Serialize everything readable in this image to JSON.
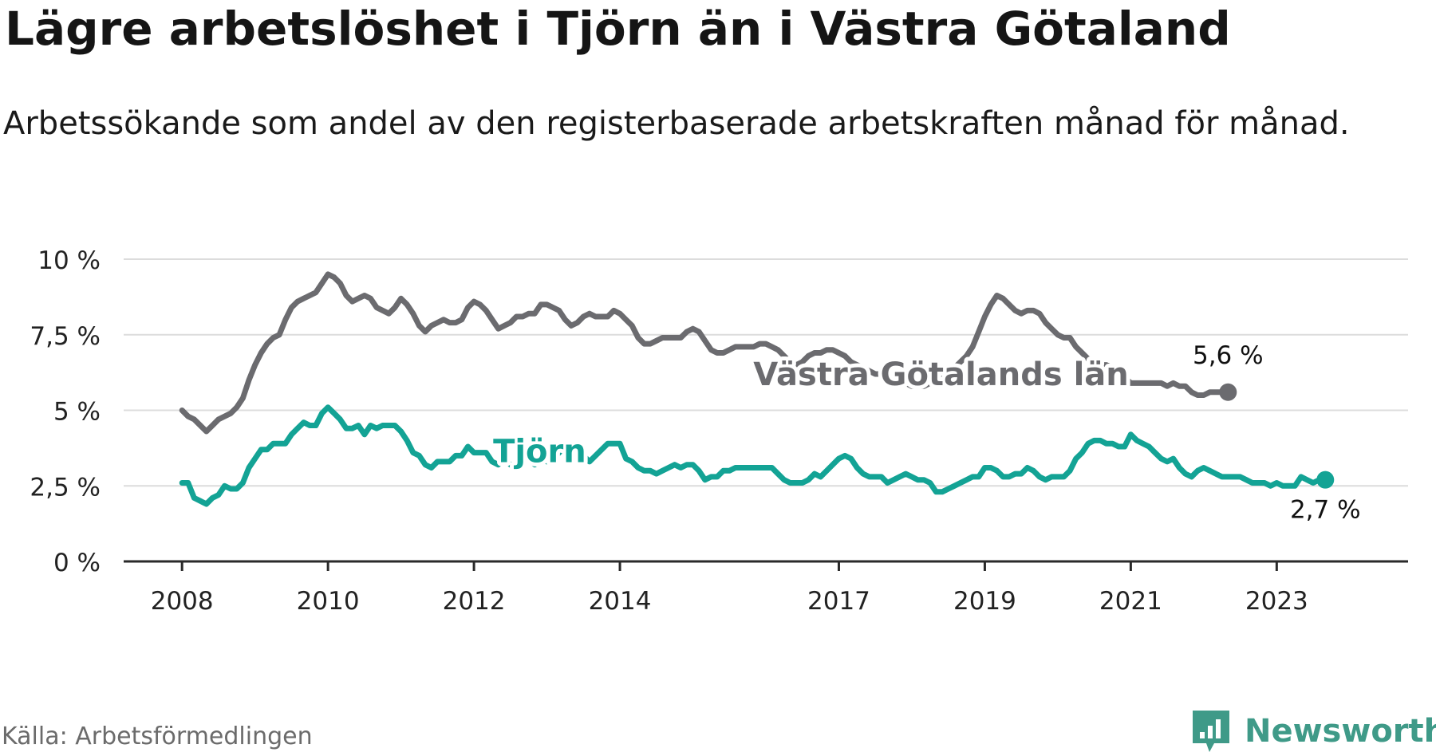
{
  "title": "Lägre arbetslöshet i Tjörn än i Västra Götaland",
  "subtitle": "Arbetssökande som andel av den registerbaserade arbetskraften månad för månad.",
  "source": "Källa: Arbetsförmedlingen",
  "brand": {
    "name": "Newsworthy",
    "icon": "newsworthy-logo-icon",
    "color": "#3f9a88"
  },
  "chart_data": {
    "type": "line",
    "title": "Lägre arbetslöshet i Tjörn än i Västra Götaland",
    "xlabel": "",
    "ylabel": "",
    "x_start": 2008.0,
    "x_step": 0.08333,
    "xlim": [
      2007.2,
      2024.8
    ],
    "ylim": [
      0,
      10
    ],
    "y_ticks": [
      0,
      2.5,
      5,
      7.5,
      10
    ],
    "y_tick_labels": [
      "0 %",
      "2,5 %",
      "5 %",
      "7,5 %",
      "10 %"
    ],
    "x_ticks": [
      2008,
      2010,
      2012,
      2014,
      2017,
      2019,
      2021,
      2023
    ],
    "x_tick_labels": [
      "2008",
      "2010",
      "2012",
      "2014",
      "2017",
      "2019",
      "2021",
      "2023"
    ],
    "grid": true,
    "series": [
      {
        "name": "Västra Götalands län",
        "color": "#6b6b6f",
        "end_label": "5,6 %",
        "values": [
          5.0,
          4.8,
          4.7,
          4.5,
          4.3,
          4.5,
          4.7,
          4.8,
          4.9,
          5.1,
          5.4,
          6.0,
          6.5,
          6.9,
          7.2,
          7.4,
          7.5,
          8.0,
          8.4,
          8.6,
          8.7,
          8.8,
          8.9,
          9.2,
          9.5,
          9.4,
          9.2,
          8.8,
          8.6,
          8.7,
          8.8,
          8.7,
          8.4,
          8.3,
          8.2,
          8.4,
          8.7,
          8.5,
          8.2,
          7.8,
          7.6,
          7.8,
          7.9,
          8.0,
          7.9,
          7.9,
          8.0,
          8.4,
          8.6,
          8.5,
          8.3,
          8.0,
          7.7,
          7.8,
          7.9,
          8.1,
          8.1,
          8.2,
          8.2,
          8.5,
          8.5,
          8.4,
          8.3,
          8.0,
          7.8,
          7.9,
          8.1,
          8.2,
          8.1,
          8.1,
          8.1,
          8.3,
          8.2,
          8.0,
          7.8,
          7.4,
          7.2,
          7.2,
          7.3,
          7.4,
          7.4,
          7.4,
          7.4,
          7.6,
          7.7,
          7.6,
          7.3,
          7.0,
          6.9,
          6.9,
          7.0,
          7.1,
          7.1,
          7.1,
          7.1,
          7.2,
          7.2,
          7.1,
          7.0,
          6.8,
          6.6,
          6.5,
          6.6,
          6.8,
          6.9,
          6.9,
          7.0,
          7.0,
          6.9,
          6.8,
          6.6,
          6.5,
          6.4,
          6.3,
          6.2,
          6.2,
          6.1,
          6.0,
          6.0,
          5.9,
          5.8,
          5.8,
          5.8,
          5.9,
          6.1,
          6.2,
          6.3,
          6.4,
          6.6,
          6.8,
          7.1,
          7.6,
          8.1,
          8.5,
          8.8,
          8.7,
          8.5,
          8.3,
          8.2,
          8.3,
          8.3,
          8.2,
          7.9,
          7.7,
          7.5,
          7.4,
          7.4,
          7.1,
          6.9,
          6.7,
          6.5,
          6.5,
          6.5,
          6.4,
          6.3,
          6.1,
          5.9,
          5.9,
          5.9,
          5.9,
          5.9,
          5.9,
          5.8,
          5.9,
          5.8,
          5.8,
          5.6,
          5.5,
          5.5,
          5.6,
          5.6,
          5.6,
          5.6
        ]
      },
      {
        "name": "Tjörn",
        "color": "#13a395",
        "end_label": "2,7 %",
        "values": [
          2.6,
          2.6,
          2.1,
          2.0,
          1.9,
          2.1,
          2.2,
          2.5,
          2.4,
          2.4,
          2.6,
          3.1,
          3.4,
          3.7,
          3.7,
          3.9,
          3.9,
          3.9,
          4.2,
          4.4,
          4.6,
          4.5,
          4.5,
          4.9,
          5.1,
          4.9,
          4.7,
          4.4,
          4.4,
          4.5,
          4.2,
          4.5,
          4.4,
          4.5,
          4.5,
          4.5,
          4.3,
          4.0,
          3.6,
          3.5,
          3.2,
          3.1,
          3.3,
          3.3,
          3.3,
          3.5,
          3.5,
          3.8,
          3.6,
          3.6,
          3.6,
          3.3,
          3.2,
          3.4,
          3.2,
          3.1,
          3.3,
          3.4,
          3.2,
          3.4,
          3.3,
          3.4,
          3.6,
          3.8,
          3.7,
          3.6,
          3.5,
          3.3,
          3.5,
          3.7,
          3.9,
          3.9,
          3.9,
          3.4,
          3.3,
          3.1,
          3.0,
          3.0,
          2.9,
          3.0,
          3.1,
          3.2,
          3.1,
          3.2,
          3.2,
          3.0,
          2.7,
          2.8,
          2.8,
          3.0,
          3.0,
          3.1,
          3.1,
          3.1,
          3.1,
          3.1,
          3.1,
          3.1,
          2.9,
          2.7,
          2.6,
          2.6,
          2.6,
          2.7,
          2.9,
          2.8,
          3.0,
          3.2,
          3.4,
          3.5,
          3.4,
          3.1,
          2.9,
          2.8,
          2.8,
          2.8,
          2.6,
          2.7,
          2.8,
          2.9,
          2.8,
          2.7,
          2.7,
          2.6,
          2.3,
          2.3,
          2.4,
          2.5,
          2.6,
          2.7,
          2.8,
          2.8,
          3.1,
          3.1,
          3.0,
          2.8,
          2.8,
          2.9,
          2.9,
          3.1,
          3.0,
          2.8,
          2.7,
          2.8,
          2.8,
          2.8,
          3.0,
          3.4,
          3.6,
          3.9,
          4.0,
          4.0,
          3.9,
          3.9,
          3.8,
          3.8,
          4.2,
          4.0,
          3.9,
          3.8,
          3.6,
          3.4,
          3.3,
          3.4,
          3.1,
          2.9,
          2.8,
          3.0,
          3.1,
          3.0,
          2.9,
          2.8,
          2.8,
          2.8,
          2.8,
          2.7,
          2.6,
          2.6,
          2.6,
          2.5,
          2.6,
          2.5,
          2.5,
          2.5,
          2.8,
          2.7,
          2.6,
          2.7,
          2.7
        ]
      }
    ],
    "annotations": [
      {
        "text": "Västra Götalands län",
        "series": "Västra Götalands län",
        "x": 2018.4,
        "y": 6.2
      },
      {
        "text": "Tjörn",
        "series": "Tjörn",
        "x": 2012.9,
        "y": 3.65
      }
    ]
  }
}
